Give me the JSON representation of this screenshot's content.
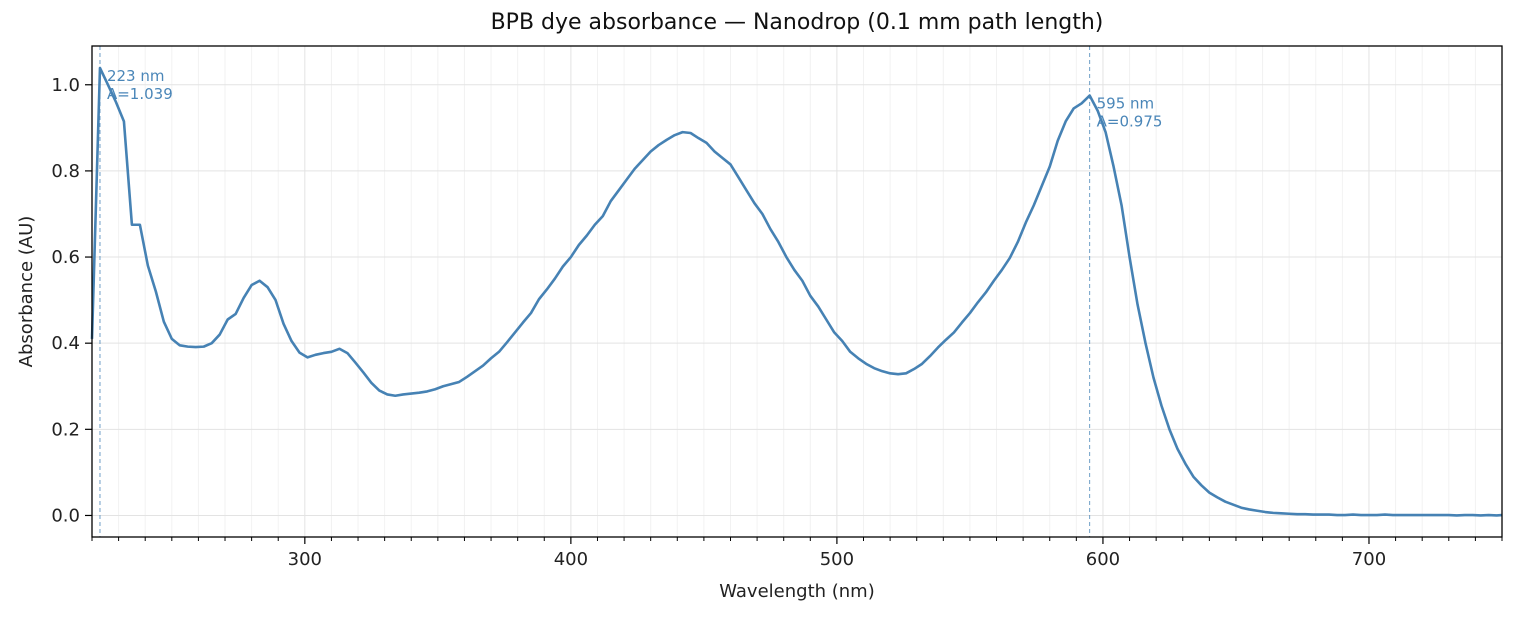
{
  "colors": {
    "series": "#4682b4",
    "annotation": "#4a86b8",
    "grid": "#e3e3e3",
    "minor_grid": "#f2f2f2",
    "axis": "#000000"
  },
  "chart_data": {
    "type": "line",
    "title": "BPB dye absorbance — Nanodrop (0.1 mm path length)",
    "xlabel": "Wavelength (nm)",
    "ylabel": "Absorbance (AU)",
    "xlim": [
      220,
      750
    ],
    "ylim": [
      -0.05,
      1.09
    ],
    "xticks": [
      300,
      400,
      500,
      600,
      700
    ],
    "xtick_labels": [
      "300",
      "400",
      "500",
      "600",
      "700"
    ],
    "yticks": [
      0.0,
      0.2,
      0.4,
      0.6,
      0.8,
      1.0
    ],
    "ytick_labels": [
      "0.0",
      "0.2",
      "0.4",
      "0.6",
      "0.8",
      "1.0"
    ],
    "grid": true,
    "series": [
      {
        "x": [
          220,
          223,
          226,
          229,
          232,
          235,
          238,
          241,
          244,
          247,
          250,
          253,
          256,
          259,
          262,
          265,
          268,
          271,
          274,
          277,
          280,
          283,
          286,
          289,
          292,
          295,
          298,
          301,
          304,
          307,
          310,
          313,
          316,
          319,
          322,
          325,
          328,
          331,
          334,
          337,
          340,
          343,
          346,
          349,
          352,
          355,
          358,
          361,
          364,
          367,
          370,
          373,
          376,
          379,
          382,
          385,
          388,
          391,
          394,
          397,
          400,
          403,
          406,
          409,
          412,
          415,
          418,
          421,
          424,
          427,
          430,
          433,
          436,
          439,
          442,
          445,
          448,
          451,
          454,
          457,
          460,
          463,
          466,
          469,
          472,
          475,
          478,
          481,
          484,
          487,
          490,
          493,
          496,
          499,
          502,
          505,
          508,
          511,
          514,
          517,
          520,
          523,
          526,
          529,
          532,
          535,
          538,
          541,
          544,
          547,
          550,
          553,
          556,
          559,
          562,
          565,
          568,
          571,
          574,
          577,
          580,
          583,
          586,
          589,
          592,
          595,
          598,
          601,
          604,
          607,
          610,
          613,
          616,
          619,
          622,
          625,
          628,
          631,
          634,
          637,
          640,
          643,
          646,
          649,
          652,
          655,
          658,
          661,
          664,
          667,
          670,
          673,
          676,
          679,
          682,
          685,
          688,
          691,
          694,
          697,
          700,
          703,
          706,
          709,
          712,
          715,
          718,
          721,
          724,
          727,
          730,
          733,
          736,
          739,
          742,
          745,
          748,
          750
        ],
        "y": [
          0.41,
          1.039,
          1.0,
          0.96,
          0.915,
          0.675,
          0.675,
          0.58,
          0.52,
          0.45,
          0.41,
          0.395,
          0.392,
          0.391,
          0.392,
          0.4,
          0.42,
          0.455,
          0.468,
          0.505,
          0.535,
          0.545,
          0.53,
          0.5,
          0.445,
          0.405,
          0.378,
          0.367,
          0.373,
          0.377,
          0.38,
          0.387,
          0.377,
          0.355,
          0.332,
          0.308,
          0.29,
          0.281,
          0.278,
          0.281,
          0.283,
          0.285,
          0.288,
          0.293,
          0.3,
          0.305,
          0.31,
          0.322,
          0.335,
          0.348,
          0.365,
          0.38,
          0.402,
          0.425,
          0.448,
          0.47,
          0.502,
          0.525,
          0.55,
          0.578,
          0.6,
          0.628,
          0.65,
          0.675,
          0.695,
          0.73,
          0.755,
          0.78,
          0.805,
          0.825,
          0.845,
          0.86,
          0.872,
          0.883,
          0.89,
          0.888,
          0.876,
          0.865,
          0.845,
          0.83,
          0.815,
          0.785,
          0.755,
          0.725,
          0.7,
          0.665,
          0.635,
          0.6,
          0.57,
          0.545,
          0.51,
          0.485,
          0.455,
          0.425,
          0.405,
          0.38,
          0.365,
          0.352,
          0.342,
          0.335,
          0.33,
          0.328,
          0.33,
          0.34,
          0.352,
          0.37,
          0.39,
          0.408,
          0.425,
          0.448,
          0.47,
          0.495,
          0.518,
          0.545,
          0.57,
          0.598,
          0.635,
          0.68,
          0.72,
          0.765,
          0.81,
          0.87,
          0.915,
          0.945,
          0.957,
          0.975,
          0.94,
          0.89,
          0.81,
          0.72,
          0.6,
          0.49,
          0.4,
          0.32,
          0.255,
          0.2,
          0.155,
          0.12,
          0.09,
          0.07,
          0.053,
          0.042,
          0.032,
          0.025,
          0.018,
          0.014,
          0.011,
          0.008,
          0.006,
          0.005,
          0.004,
          0.003,
          0.003,
          0.002,
          0.002,
          0.002,
          0.001,
          0.001,
          0.002,
          0.001,
          0.001,
          0.001,
          0.002,
          0.001,
          0.001,
          0.001,
          0.001,
          0.001,
          0.001,
          0.001,
          0.001,
          0.0,
          0.001,
          0.001,
          0.0,
          0.001,
          0.0,
          0.001
        ]
      }
    ],
    "vlines": [
      223,
      595
    ],
    "annotations": [
      {
        "x": 223,
        "y": 1.039,
        "label": "223 nm",
        "value_label": "A=1.039"
      },
      {
        "x": 595,
        "y": 0.975,
        "label": "595 nm",
        "value_label": "A=0.975"
      }
    ]
  }
}
